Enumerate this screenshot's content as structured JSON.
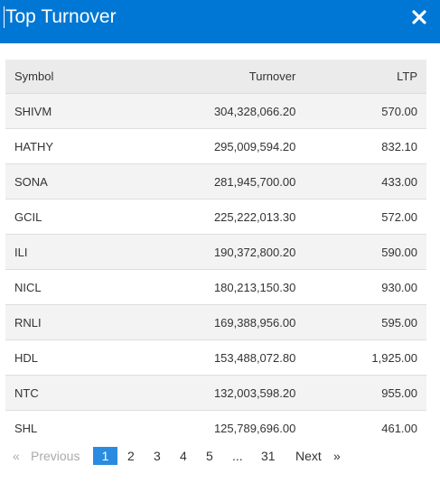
{
  "header": {
    "title": "Top Turnover",
    "close_icon": "close-icon"
  },
  "table": {
    "columns": [
      "Symbol",
      "Turnover",
      "LTP"
    ],
    "rows": [
      {
        "symbol": "SHIVM",
        "turnover": "304,328,066.20",
        "ltp": "570.00"
      },
      {
        "symbol": "HATHY",
        "turnover": "295,009,594.20",
        "ltp": "832.10"
      },
      {
        "symbol": "SONA",
        "turnover": "281,945,700.00",
        "ltp": "433.00"
      },
      {
        "symbol": "GCIL",
        "turnover": "225,222,013.30",
        "ltp": "572.00"
      },
      {
        "symbol": "ILI",
        "turnover": "190,372,800.20",
        "ltp": "590.00"
      },
      {
        "symbol": "NICL",
        "turnover": "180,213,150.30",
        "ltp": "930.00"
      },
      {
        "symbol": "RNLI",
        "turnover": "169,388,956.00",
        "ltp": "595.00"
      },
      {
        "symbol": "HDL",
        "turnover": "153,488,072.80",
        "ltp": "1,925.00"
      },
      {
        "symbol": "NTC",
        "turnover": "132,003,598.20",
        "ltp": "955.00"
      },
      {
        "symbol": "SHL",
        "turnover": "125,789,696.00",
        "ltp": "461.00"
      }
    ]
  },
  "pagination": {
    "first_arrow": "«",
    "previous": "Previous",
    "pages": [
      "1",
      "2",
      "3",
      "4",
      "5"
    ],
    "ellipsis": "...",
    "last_page": "31",
    "next": "Next",
    "last_arrow": "»",
    "current_page": "1"
  },
  "colors": {
    "header_bg": "#0077d4",
    "active_page": "#2a8ce0",
    "stripe": "#f3f3f3"
  }
}
